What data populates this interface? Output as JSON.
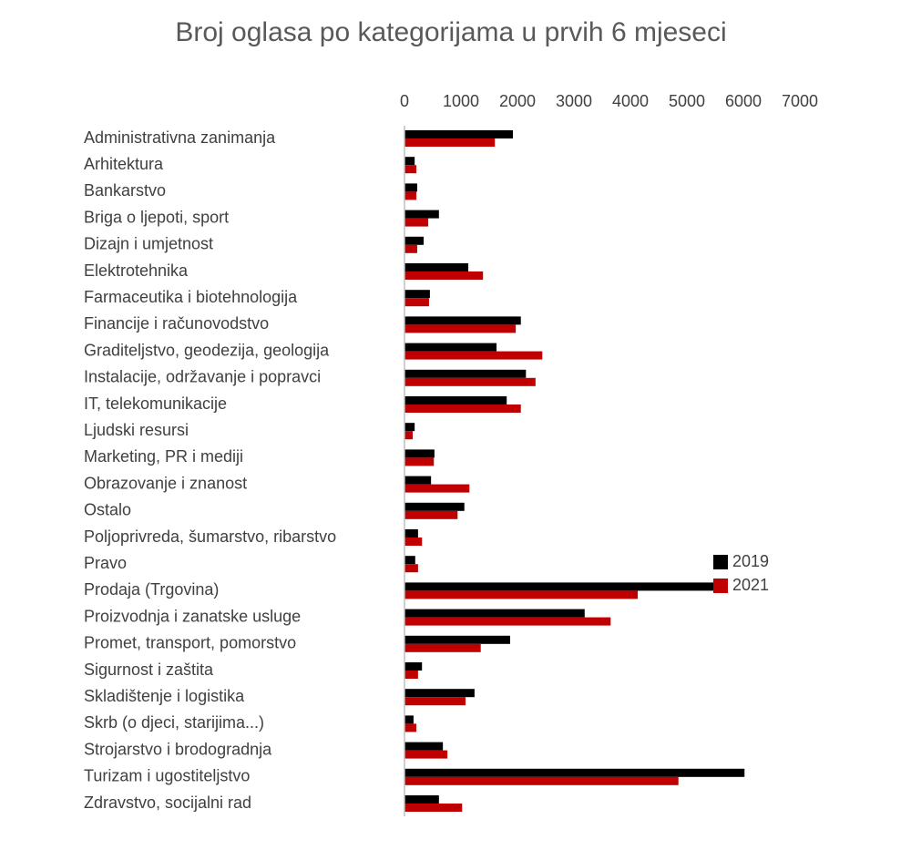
{
  "chart_data": {
    "type": "barh",
    "title": "Broj oglasa po kategorijama u prvih 6 mjeseci",
    "categories": [
      "Administrativna zanimanja",
      "Arhitektura",
      "Bankarstvo",
      "Briga o ljepoti, sport",
      "Dizajn i umjetnost",
      "Elektrotehnika",
      "Farmaceutika i biotehnologija",
      "Financije i računovodstvo",
      "Graditeljstvo, geodezija, geologija",
      "Instalacije, održavanje i popravci",
      "IT, telekomunikacije",
      "Ljudski resursi",
      "Marketing, PR i mediji",
      "Obrazovanje i znanost",
      "Ostalo",
      "Poljoprivreda, šumarstvo, ribarstvo",
      "Pravo",
      "Prodaja (Trgovina)",
      "Proizvodnja i zanatske usluge",
      "Promet, transport, pomorstvo",
      "Sigurnost i zaštita",
      "Skladištenje i logistika",
      "Skrb (o djeci, starijima...)",
      "Strojarstvo i brodogradnja",
      "Turizam i ugostiteljstvo",
      "Zdravstvo, socijalni rad"
    ],
    "series": [
      {
        "name": "2019",
        "color": "#000000",
        "values": [
          1920,
          180,
          225,
          610,
          340,
          1130,
          450,
          2060,
          1630,
          2150,
          1810,
          180,
          530,
          470,
          1060,
          240,
          190,
          5650,
          3190,
          1870,
          310,
          1240,
          160,
          680,
          6020,
          610
        ]
      },
      {
        "name": "2021",
        "color": "#c00000",
        "values": [
          1600,
          210,
          210,
          420,
          225,
          1390,
          435,
          1970,
          2440,
          2320,
          2060,
          145,
          520,
          1150,
          940,
          310,
          240,
          4130,
          3650,
          1350,
          240,
          1080,
          210,
          760,
          4850,
          1020
        ]
      }
    ],
    "xlim": [
      0,
      7000
    ],
    "xticks": [
      0,
      1000,
      2000,
      3000,
      4000,
      5000,
      6000,
      7000
    ],
    "grid": false,
    "legend": "right"
  }
}
